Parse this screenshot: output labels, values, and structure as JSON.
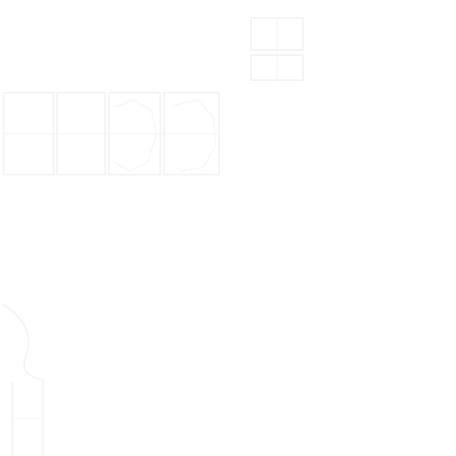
{
  "page": {
    "background_color": "#ffffff",
    "mark_color": "#f4f4f4"
  }
}
